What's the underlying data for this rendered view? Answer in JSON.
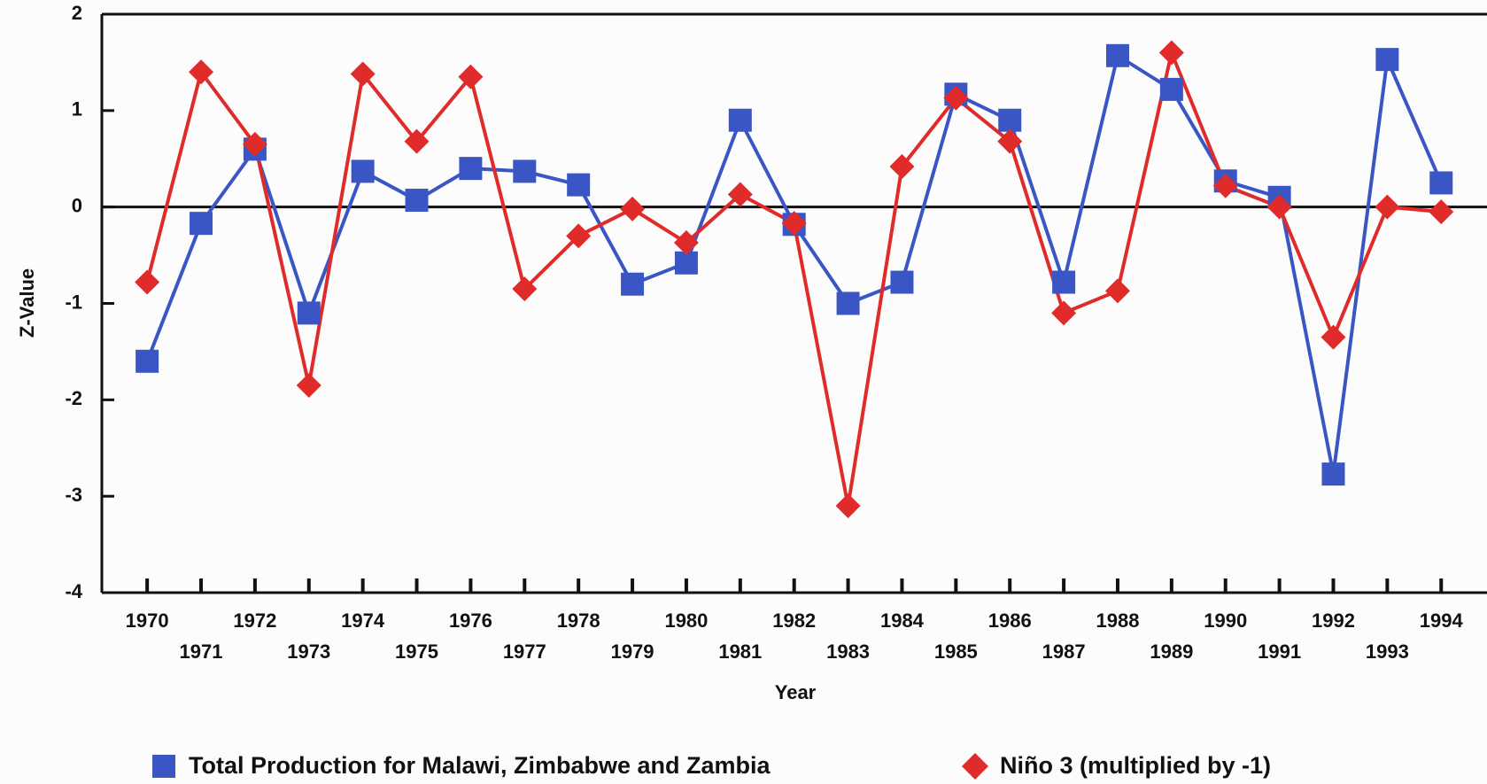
{
  "chart_data": {
    "type": "line",
    "x_label": "Year",
    "y_label": "Z-Value",
    "x": [
      1970,
      1971,
      1972,
      1973,
      1974,
      1975,
      1976,
      1977,
      1978,
      1979,
      1980,
      1981,
      1982,
      1983,
      1984,
      1985,
      1986,
      1987,
      1988,
      1989,
      1990,
      1991,
      1992,
      1993,
      1994
    ],
    "xlim": [
      1969.16,
      1994.85
    ],
    "xticks": [
      1970,
      1971,
      1972,
      1973,
      1974,
      1975,
      1976,
      1977,
      1978,
      1979,
      1980,
      1981,
      1982,
      1983,
      1984,
      1985,
      1986,
      1987,
      1988,
      1989,
      1990,
      1991,
      1992,
      1993,
      1994
    ],
    "ylim": [
      -4,
      2
    ],
    "yticks": [
      -4,
      -3,
      -2,
      -1,
      0,
      1,
      2
    ],
    "series": [
      {
        "name": "Total Production for Malawi, Zimbabwe and Zambia",
        "color": "#3a56c4",
        "marker": "square",
        "values": [
          -1.6,
          -0.17,
          0.6,
          -1.1,
          0.37,
          0.07,
          0.4,
          0.37,
          0.23,
          -0.8,
          -0.58,
          0.9,
          -0.18,
          -1.0,
          -0.78,
          1.17,
          0.9,
          -0.78,
          1.57,
          1.22,
          0.27,
          0.1,
          -2.77,
          1.53,
          0.25
        ]
      },
      {
        "name": "Niño 3 (multiplied by -1)",
        "color": "#e02b2b",
        "marker": "diamond",
        "values": [
          -0.78,
          1.4,
          0.65,
          -1.85,
          1.38,
          0.68,
          1.35,
          -0.85,
          -0.3,
          -0.02,
          -0.37,
          0.13,
          -0.17,
          -3.1,
          0.42,
          1.13,
          0.68,
          -1.1,
          -0.87,
          1.6,
          0.22,
          0.0,
          -1.35,
          0.0,
          -0.05
        ]
      }
    ]
  }
}
